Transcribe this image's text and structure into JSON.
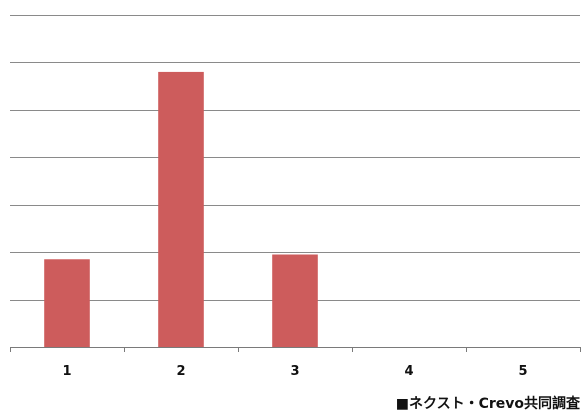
{
  "chart_data": {
    "type": "bar",
    "categories": [
      "1",
      "2",
      "3",
      "4",
      "5"
    ],
    "values": [
      1.85,
      5.8,
      1.95,
      0,
      0
    ],
    "ylim": [
      0,
      7
    ],
    "ytick_step": 1,
    "grid": true,
    "title": "",
    "xlabel": "",
    "ylabel": ""
  },
  "colors": {
    "bar": "#cd5c5c",
    "grid": "#8a8a8a",
    "axis": "#7a7a7a",
    "text": "#111111"
  },
  "source_note": "■ネクスト・Crevo共同調査"
}
